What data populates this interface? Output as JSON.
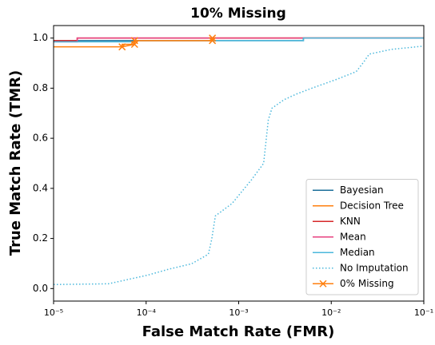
{
  "chart_data": {
    "type": "line",
    "title": "10% Missing",
    "xlabel": "False Match Rate (FMR)",
    "ylabel": "True Match Rate (TMR)",
    "xscale": "log",
    "xlim": [
      1e-05,
      0.1
    ],
    "ylim": [
      -0.05,
      1.05
    ],
    "xticks": [
      {
        "value": 1e-05,
        "label": "10⁻⁵"
      },
      {
        "value": 0.0001,
        "label": "10⁻⁴"
      },
      {
        "value": 0.001,
        "label": "10⁻³"
      },
      {
        "value": 0.01,
        "label": "10⁻²"
      },
      {
        "value": 0.1,
        "label": "10⁻¹"
      }
    ],
    "yticks": [
      {
        "value": 0,
        "label": "0.0"
      },
      0.2,
      0.4,
      0.6,
      0.8,
      {
        "value": 1,
        "label": "1.0"
      }
    ],
    "legend": "lower right",
    "series": [
      {
        "name": "Bayesian",
        "color": "#1a6f9a",
        "style": "solid",
        "x": [
          1e-05,
          0.005,
          0.005,
          0.1
        ],
        "values": [
          0.99,
          0.99,
          1.0,
          1.0
        ]
      },
      {
        "name": "Decision Tree",
        "color": "#ff7f0e",
        "style": "solid",
        "x": [
          1e-05,
          5.5e-05,
          5.5e-05,
          7.5e-05,
          7.5e-05,
          0.00052,
          0.00052,
          0.1
        ],
        "values": [
          0.965,
          0.965,
          0.975,
          0.975,
          0.99,
          0.99,
          1.0,
          1.0
        ]
      },
      {
        "name": "KNN",
        "color": "#d62728",
        "style": "solid",
        "x": [
          1e-05,
          1.8e-05,
          1.8e-05,
          0.1
        ],
        "values": [
          0.99,
          0.99,
          1.0,
          1.0
        ]
      },
      {
        "name": "Mean",
        "color": "#e7407f",
        "style": "solid",
        "x": [
          1e-05,
          1.8e-05,
          1.8e-05,
          0.1
        ],
        "values": [
          0.985,
          0.985,
          1.0,
          1.0
        ]
      },
      {
        "name": "Median",
        "color": "#4bb8dc",
        "style": "solid",
        "x": [
          1e-05,
          7.5e-05,
          7.5e-05,
          0.005,
          0.005,
          0.1
        ],
        "values": [
          0.985,
          0.985,
          0.99,
          0.99,
          1.0,
          1.0
        ]
      },
      {
        "name": "No Imputation",
        "color": "#4bb8dc",
        "style": "dotted",
        "x": [
          1e-05,
          3.9e-05,
          5.2e-05,
          0.000105,
          0.000174,
          0.00031,
          0.00047,
          0.00051,
          0.00056,
          0.00085,
          0.00138,
          0.00186,
          0.00209,
          0.00229,
          0.00309,
          0.00417,
          0.00617,
          0.0112,
          0.0186,
          0.0224,
          0.0257,
          0.0447,
          0.1
        ],
        "values": [
          0.016,
          0.019,
          0.029,
          0.054,
          0.077,
          0.099,
          0.137,
          0.195,
          0.29,
          0.34,
          0.435,
          0.5,
          0.674,
          0.72,
          0.754,
          0.776,
          0.8,
          0.834,
          0.866,
          0.904,
          0.936,
          0.955,
          0.968
        ]
      },
      {
        "name": "0% Missing",
        "color": "#ff7f0e",
        "style": "solid",
        "marker": "x",
        "x": [
          5.5e-05,
          7.5e-05,
          7.5e-05,
          0.00052,
          0.00052
        ],
        "values": [
          0.965,
          0.975,
          0.99,
          0.99,
          1.0
        ]
      }
    ]
  }
}
